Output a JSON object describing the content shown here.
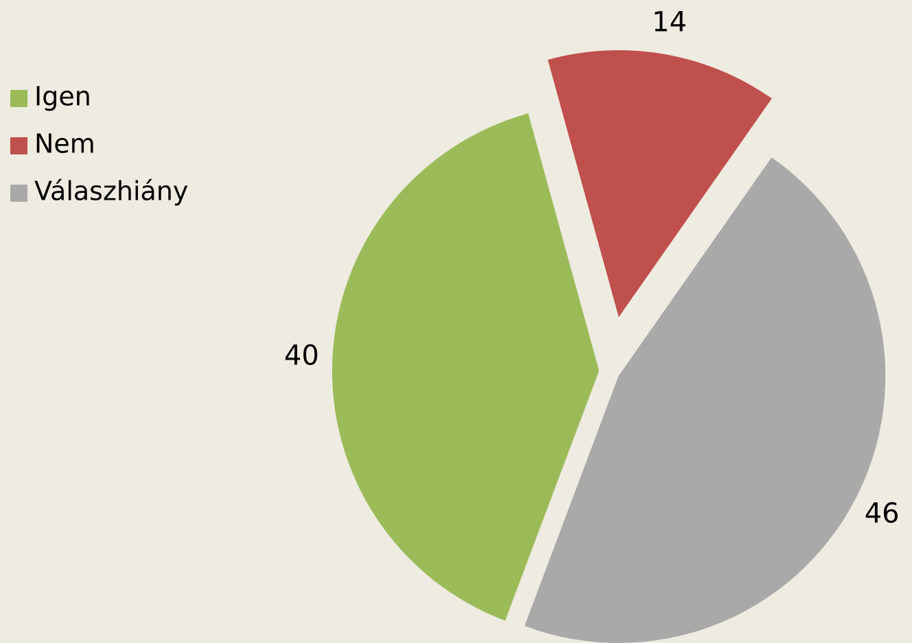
{
  "chart_data": {
    "type": "pie",
    "categories": [
      "Igen",
      "Nem",
      "Válaszhiány"
    ],
    "values": [
      40,
      14,
      46
    ],
    "colors": [
      "#9bbb59",
      "#c0504d",
      "#a9a9a9"
    ],
    "legend": "left"
  }
}
